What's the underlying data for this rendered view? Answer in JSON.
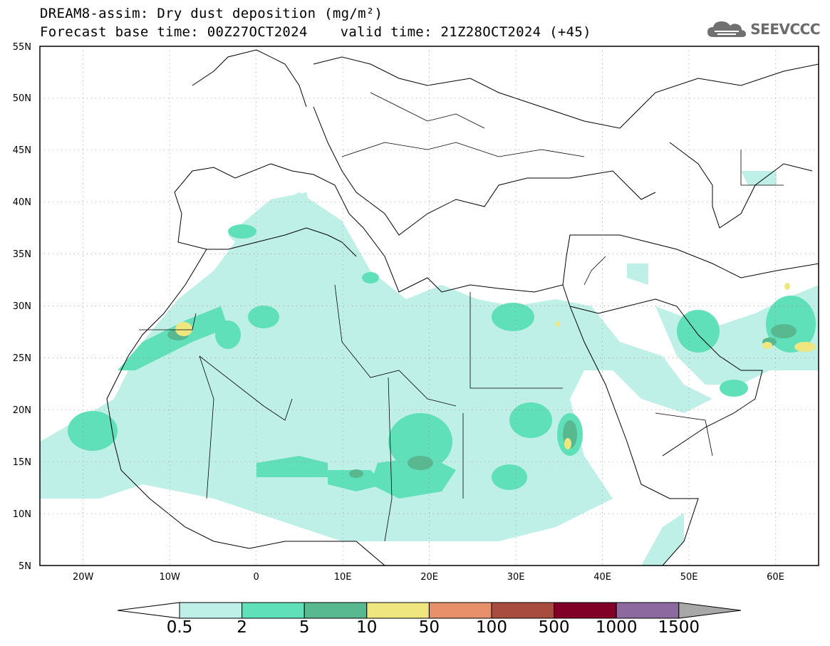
{
  "header": {
    "title": "DREAM8-assim: Dry dust deposition (mg/m²)",
    "base_time": "Forecast base time: 00Z27OCT2024",
    "valid_time": "valid time: 21Z28OCT2024 (+45)"
  },
  "logo": {
    "text": "SEEVCCC",
    "icon": "cloud-logo-icon"
  },
  "map": {
    "projection": "lat-lon",
    "lon_range": [
      -25,
      65
    ],
    "lat_range": [
      5,
      55
    ],
    "lat_ticks": [
      "5N",
      "10N",
      "15N",
      "20N",
      "25N",
      "30N",
      "35N",
      "40N",
      "45N",
      "50N",
      "55N"
    ],
    "lon_ticks": [
      "20W",
      "10W",
      "0",
      "10E",
      "20E",
      "30E",
      "40E",
      "50E",
      "60E"
    ],
    "grid": "dotted"
  },
  "colorbar": {
    "levels": [
      "0.5",
      "2",
      "5",
      "10",
      "50",
      "100",
      "500",
      "1000",
      "1500"
    ],
    "colors": [
      "#ffffff",
      "#bff0e8",
      "#5fe0b8",
      "#58b890",
      "#f0e680",
      "#e8906a",
      "#a84c40",
      "#800028",
      "#8c6aa0",
      "#a8a8a8"
    ]
  }
}
